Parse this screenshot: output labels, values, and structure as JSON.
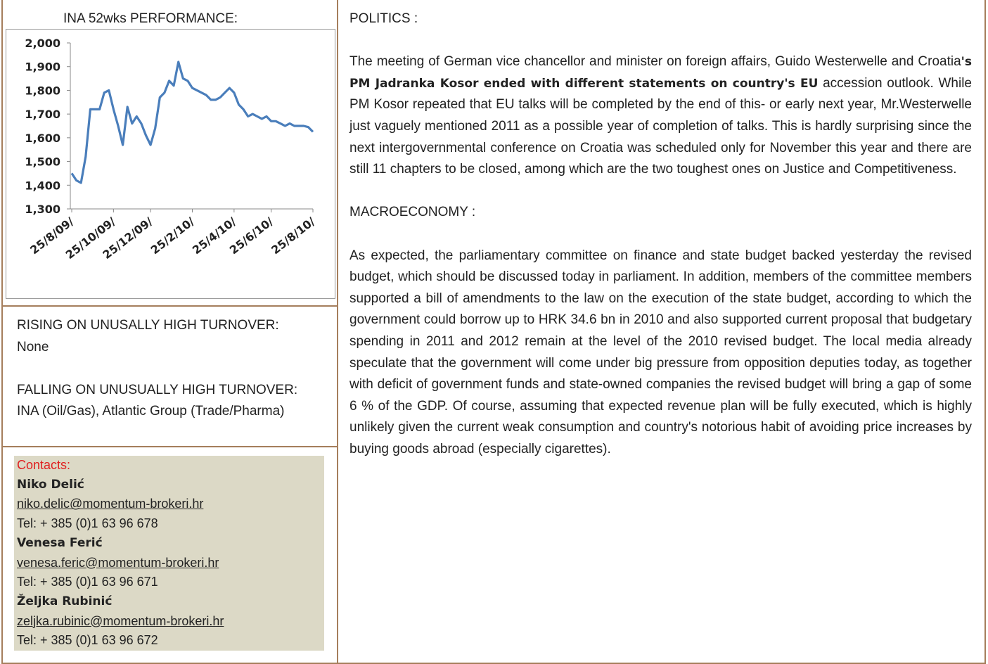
{
  "left": {
    "chart_data": {
      "type": "line",
      "title": "INA 52wks PERFORMANCE:",
      "categories": [
        "25/8/09/",
        null,
        null,
        null,
        null,
        null,
        null,
        null,
        null,
        "25/10/09/",
        null,
        null,
        null,
        null,
        null,
        null,
        null,
        "25/12/09/",
        null,
        null,
        null,
        null,
        null,
        null,
        null,
        null,
        "25/2/10/",
        null,
        null,
        null,
        null,
        null,
        null,
        null,
        null,
        "25/4/10/",
        null,
        null,
        null,
        null,
        null,
        null,
        null,
        "25/6/10/",
        null,
        null,
        null,
        null,
        null,
        null,
        null,
        null,
        "25/8/10/"
      ],
      "series": [
        {
          "name": "INA",
          "color": "#4a7ebb",
          "values": [
            1450,
            1420,
            1410,
            1520,
            1720,
            1720,
            1720,
            1790,
            1800,
            1720,
            1650,
            1570,
            1730,
            1660,
            1690,
            1660,
            1610,
            1570,
            1640,
            1770,
            1790,
            1840,
            1820,
            1920,
            1850,
            1840,
            1810,
            1800,
            1790,
            1780,
            1760,
            1760,
            1770,
            1790,
            1810,
            1790,
            1740,
            1720,
            1690,
            1700,
            1690,
            1680,
            1690,
            1670,
            1670,
            1660,
            1650,
            1660,
            1650,
            1650,
            1650,
            1645,
            1625
          ]
        }
      ],
      "ylim": [
        1300,
        2000
      ],
      "yticks": [
        {
          "value": 1300,
          "label": "1,300"
        },
        {
          "value": 1400,
          "label": "1,400"
        },
        {
          "value": 1500,
          "label": "1,500"
        },
        {
          "value": 1600,
          "label": "1,600"
        },
        {
          "value": 1700,
          "label": "1,700"
        },
        {
          "value": 1800,
          "label": "1,800"
        },
        {
          "value": 1900,
          "label": "1,900"
        },
        {
          "value": 2000,
          "label": "2,000"
        }
      ]
    },
    "rising": {
      "title": "RISING ON UNUSALLY HIGH TURNOVER:",
      "text": "None"
    },
    "falling": {
      "title": "FALLING ON UNUSUALLY HIGH TURNOVER:",
      "text": "INA (Oil/Gas), Atlantic Group (Trade/Pharma)"
    },
    "contacts": {
      "title": "Contacts:",
      "people": [
        {
          "name": "Niko Delić",
          "email": "niko.delic@momentum-brokeri.hr",
          "tel": "Tel: + 385 (0)1 63 96 678"
        },
        {
          "name": "Venesa Ferić",
          "email": "venesa.feric@momentum-brokeri.hr",
          "tel": "Tel: + 385 (0)1 63 96 671"
        },
        {
          "name": "Željka Rubinić",
          "email": "zeljka.rubinic@momentum-brokeri.hr",
          "tel": "Tel: + 385 (0)1 63 96 672"
        }
      ]
    }
  },
  "right": {
    "politics": {
      "title": "POLITICS :",
      "parts": [
        "The meeting of German vice chancellor and minister on foreign affairs, Guido Westerwelle and Croatia",
        "'s PM Jadranka Kosor ended with different statements on country's EU",
        " accession outlook. While PM Kosor repeated that EU talks will be completed by the end of this- or early next year, Mr.Westerwelle just vaguely mentioned 2011 as a possible year of completion of talks. This is hardly surprising since the next intergovernmental conference on Croatia was scheduled only for November this year and there are still 11 chapters to be closed, among which are the two toughest ones on Justice and Competitiveness."
      ]
    },
    "macroeconomy": {
      "title": "MACROECONOMY :",
      "text": "As expected, the parliamentary committee on finance and state budget backed yesterday the revised budget, which should be discussed today in parliament. In addition, members of the committee members supported a bill of amendments to the law on the execution of the state budget, according to which the government could borrow up to HRK 34.6 bn in 2010 and also supported current proposal that budgetary spending in 2011 and 2012 remain at the level of the 2010 revised budget. The local media already speculate that the government will come under big pressure from opposition deputies today, as together with deficit of government funds and state-owned companies the revised budget will bring a gap of some 6 % of the GDP. Of course, assuming that expected revenue plan will be fully executed, which is highly unlikely given the current weak consumption and country's notorious habit of avoiding price increases by buying goods abroad (especially cigarettes)."
    }
  }
}
